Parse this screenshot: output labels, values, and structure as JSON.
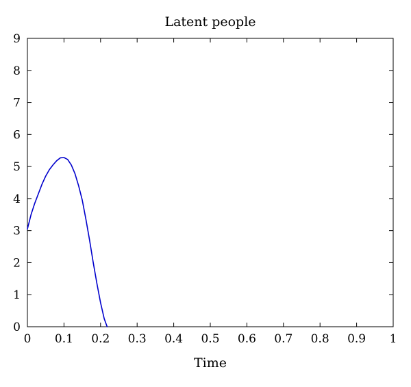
{
  "chart_data": {
    "type": "line",
    "title": "Latent people",
    "xlabel": "Time",
    "ylabel": "",
    "xlim": [
      0,
      1
    ],
    "ylim": [
      0,
      9
    ],
    "x_ticks": [
      0,
      0.1,
      0.2,
      0.3,
      0.4,
      0.5,
      0.6,
      0.7,
      0.8,
      0.9,
      1
    ],
    "x_tick_labels": [
      "0",
      "0.1",
      "0.2",
      "0.3",
      "0.4",
      "0.5",
      "0.6",
      "0.7",
      "0.8",
      "0.9",
      "1"
    ],
    "y_ticks": [
      0,
      1,
      2,
      3,
      4,
      5,
      6,
      7,
      8,
      9
    ],
    "y_tick_labels": [
      "0",
      "1",
      "2",
      "3",
      "4",
      "5",
      "6",
      "7",
      "8",
      "9"
    ],
    "grid": false,
    "series": [
      {
        "color": "#0000cc",
        "x": [
          0,
          0.01,
          0.02,
          0.03,
          0.04,
          0.05,
          0.06,
          0.07,
          0.08,
          0.09,
          0.1,
          0.11,
          0.12,
          0.13,
          0.14,
          0.15,
          0.16,
          0.17,
          0.18,
          0.19,
          0.2,
          0.21,
          0.218
        ],
        "y": [
          3.05,
          3.5,
          3.85,
          4.15,
          4.45,
          4.7,
          4.9,
          5.05,
          5.18,
          5.27,
          5.28,
          5.22,
          5.05,
          4.78,
          4.4,
          3.95,
          3.35,
          2.7,
          2.0,
          1.35,
          0.75,
          0.25,
          0.0
        ]
      }
    ]
  }
}
